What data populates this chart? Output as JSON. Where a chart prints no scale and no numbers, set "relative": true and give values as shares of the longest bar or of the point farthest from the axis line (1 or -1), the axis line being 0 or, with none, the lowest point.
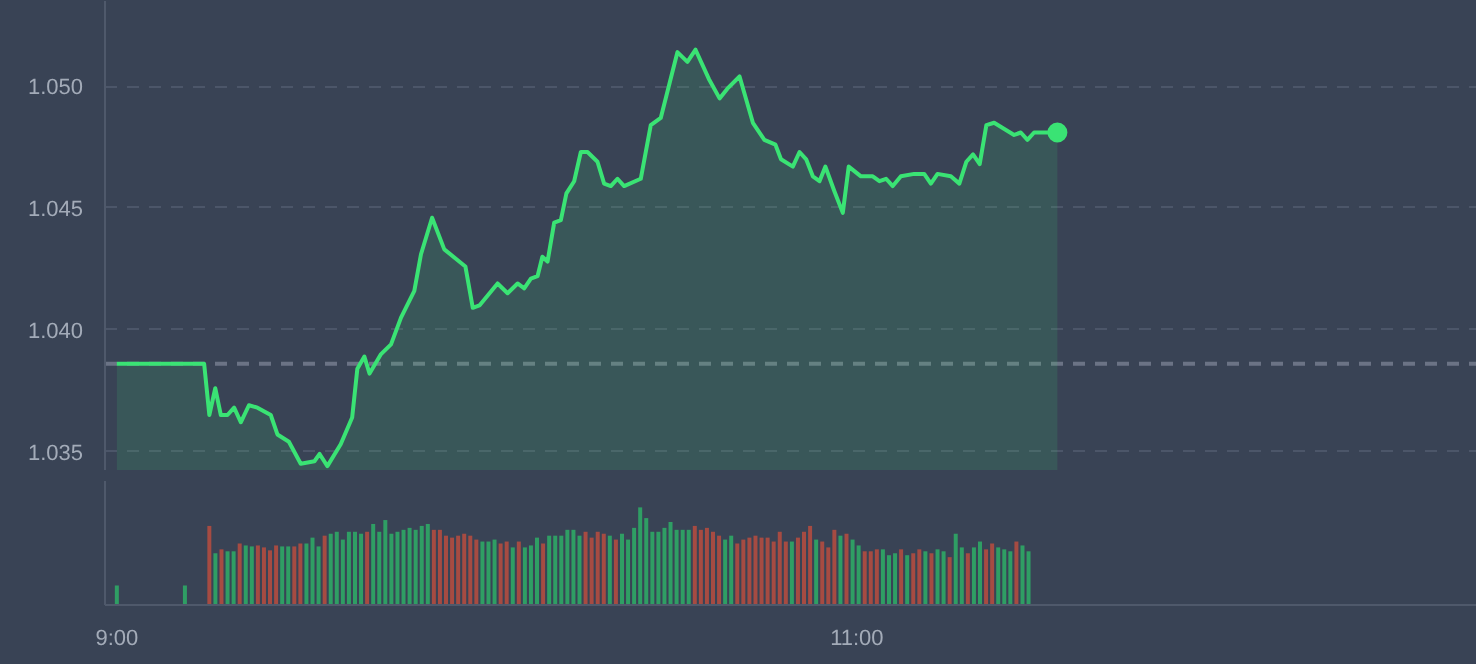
{
  "chart_data": [
    {
      "type": "area",
      "color": "#3ae374",
      "line_style": "solid",
      "grid": "y",
      "tick_labels": "y",
      "xlim": [
        8.968,
        12.676
      ],
      "ylim": [
        1.0342,
        1.0535
      ],
      "yticks": [
        {
          "value": 1.035,
          "label": "1.035"
        },
        {
          "value": 1.04,
          "label": "1.040"
        },
        {
          "value": 1.045,
          "label": "1.045"
        },
        {
          "value": 1.05,
          "label": "1.050"
        }
      ],
      "ref_lines": [
        {
          "axis": "y",
          "value": 1.0386,
          "line_style": "dashed",
          "color": "#6b7385"
        }
      ],
      "x": [
        9.0,
        9.236,
        9.25,
        9.266,
        9.281,
        9.299,
        9.317,
        9.335,
        9.357,
        9.38,
        9.416,
        9.434,
        9.465,
        9.497,
        9.534,
        9.548,
        9.569,
        9.605,
        9.636,
        9.65,
        9.669,
        9.683,
        9.714,
        9.741,
        9.768,
        9.804,
        9.822,
        9.852,
        9.885,
        9.942,
        9.962,
        9.98,
        10.029,
        10.056,
        10.083,
        10.101,
        10.119,
        10.137,
        10.15,
        10.164,
        10.182,
        10.2,
        10.215,
        10.236,
        10.254,
        10.272,
        10.299,
        10.317,
        10.335,
        10.353,
        10.371,
        10.416,
        10.443,
        10.47,
        10.515,
        10.542,
        10.564,
        10.6,
        10.629,
        10.65,
        10.683,
        10.719,
        10.75,
        10.78,
        10.795,
        10.827,
        10.845,
        10.863,
        10.881,
        10.899,
        10.915,
        10.939,
        10.962,
        10.978,
        11.011,
        11.043,
        11.061,
        11.079,
        11.097,
        11.119,
        11.155,
        11.182,
        11.2,
        11.218,
        11.254,
        11.277,
        11.296,
        11.314,
        11.332,
        11.35,
        11.371,
        11.425,
        11.443,
        11.461,
        11.479,
        11.542
      ],
      "values": [
        1.0386,
        1.0386,
        1.0365,
        1.0376,
        1.0365,
        1.0365,
        1.0368,
        1.0362,
        1.0369,
        1.0368,
        1.0365,
        1.0357,
        1.0354,
        1.0345,
        1.0346,
        1.0349,
        1.0344,
        1.0353,
        1.0364,
        1.0384,
        1.0389,
        1.0382,
        1.039,
        1.0394,
        1.0405,
        1.0416,
        1.0431,
        1.0446,
        1.0433,
        1.0426,
        1.0409,
        1.041,
        1.0419,
        1.0415,
        1.0419,
        1.0417,
        1.0421,
        1.0422,
        1.043,
        1.0428,
        1.0444,
        1.0445,
        1.0456,
        1.0461,
        1.0473,
        1.0473,
        1.0469,
        1.046,
        1.0459,
        1.0462,
        1.0459,
        1.0462,
        1.0484,
        1.0487,
        1.0514,
        1.051,
        1.0515,
        1.0503,
        1.0495,
        1.0499,
        1.0504,
        1.0485,
        1.0478,
        1.0476,
        1.047,
        1.0467,
        1.0473,
        1.047,
        1.0463,
        1.0461,
        1.0467,
        1.0457,
        1.0448,
        1.0467,
        1.0463,
        1.0463,
        1.0461,
        1.0462,
        1.0459,
        1.0463,
        1.0464,
        1.0464,
        1.046,
        1.0464,
        1.0463,
        1.046,
        1.0469,
        1.0472,
        1.0468,
        1.0484,
        1.0485,
        1.048,
        1.0481,
        1.0478,
        1.0481,
        1.0481
      ]
    },
    {
      "type": "bar",
      "relative": true,
      "tick_labels": "x",
      "xlim": [
        8.968,
        12.676
      ],
      "xticks": [
        {
          "value": 9,
          "label": "9:00"
        },
        {
          "value": 11,
          "label": "11:00"
        }
      ],
      "x": [
        9.0,
        9.184,
        9.25,
        9.2664,
        9.2828,
        9.2992,
        9.3156,
        9.332,
        9.3484,
        9.3648,
        9.3812,
        9.3976,
        9.414,
        9.4304,
        9.4468,
        9.4632,
        9.4796,
        9.496,
        9.5124,
        9.5288,
        9.5452,
        9.5616,
        9.578,
        9.5944,
        9.6108,
        9.6272,
        9.6436,
        9.66,
        9.6764,
        9.6928,
        9.7092,
        9.7256,
        9.742,
        9.7584,
        9.7748,
        9.7912,
        9.8076,
        9.824,
        9.8404,
        9.8568,
        9.8732,
        9.8896,
        9.906,
        9.9224,
        9.9388,
        9.9552,
        9.9716,
        9.988,
        10.0044,
        10.0208,
        10.0372,
        10.0536,
        10.07,
        10.0864,
        10.1028,
        10.1192,
        10.1356,
        10.152,
        10.1684,
        10.1848,
        10.2012,
        10.2176,
        10.234,
        10.2504,
        10.2668,
        10.2832,
        10.2996,
        10.316,
        10.3324,
        10.3488,
        10.3652,
        10.3816,
        10.398,
        10.4144,
        10.4308,
        10.4472,
        10.4636,
        10.48,
        10.4964,
        10.5128,
        10.5292,
        10.5456,
        10.562,
        10.5784,
        10.5948,
        10.6112,
        10.6276,
        10.644,
        10.6604,
        10.6768,
        10.6932,
        10.7096,
        10.726,
        10.7424,
        10.7588,
        10.7752,
        10.7916,
        10.808,
        10.8244,
        10.8408,
        10.8572,
        10.8736,
        10.89,
        10.9064,
        10.9228,
        10.9392,
        10.9556,
        10.972,
        10.9884,
        11.0048,
        11.0212,
        11.0376,
        11.054,
        11.0704,
        11.0868,
        11.1032,
        11.1196,
        11.136,
        11.1524,
        11.1688,
        11.1852,
        11.2016,
        11.218,
        11.2344,
        11.2508,
        11.2672,
        11.2836,
        11.3,
        11.3164,
        11.3328,
        11.3492,
        11.3656,
        11.382,
        11.3984,
        11.4148,
        11.4312,
        11.4476,
        11.464
      ],
      "values": [
        0.2,
        0.2,
        0.81,
        0.53,
        0.57,
        0.55,
        0.55,
        0.63,
        0.61,
        0.6,
        0.61,
        0.59,
        0.56,
        0.61,
        0.6,
        0.6,
        0.6,
        0.63,
        0.63,
        0.69,
        0.6,
        0.71,
        0.73,
        0.75,
        0.67,
        0.75,
        0.75,
        0.73,
        0.75,
        0.83,
        0.75,
        0.87,
        0.73,
        0.75,
        0.77,
        0.79,
        0.77,
        0.81,
        0.83,
        0.77,
        0.77,
        0.71,
        0.69,
        0.71,
        0.73,
        0.71,
        0.67,
        0.65,
        0.65,
        0.67,
        0.63,
        0.65,
        0.59,
        0.65,
        0.59,
        0.61,
        0.69,
        0.63,
        0.71,
        0.71,
        0.71,
        0.77,
        0.77,
        0.71,
        0.75,
        0.69,
        0.75,
        0.73,
        0.71,
        0.67,
        0.73,
        0.67,
        0.79,
        1,
        0.89,
        0.75,
        0.75,
        0.79,
        0.85,
        0.77,
        0.77,
        0.77,
        0.81,
        0.77,
        0.79,
        0.75,
        0.71,
        0.67,
        0.71,
        0.63,
        0.67,
        0.69,
        0.71,
        0.69,
        0.69,
        0.65,
        0.75,
        0.65,
        0.65,
        0.69,
        0.75,
        0.81,
        0.67,
        0.65,
        0.59,
        0.77,
        0.71,
        0.73,
        0.67,
        0.61,
        0.55,
        0.55,
        0.57,
        0.57,
        0.51,
        0.53,
        0.57,
        0.51,
        0.53,
        0.57,
        0.55,
        0.53,
        0.57,
        0.55,
        0.49,
        0.73,
        0.59,
        0.53,
        0.59,
        0.65,
        0.57,
        0.63,
        0.59,
        0.57,
        0.55,
        0.65,
        0.61,
        0.55
      ],
      "colors": [
        "#2f9e64",
        "#2f9e64",
        "#a64b42",
        "#2f9e64",
        "#a64b42",
        "#2f9e64",
        "#2f9e64",
        "#a64b42",
        "#2f9e64",
        "#2f9e64",
        "#a64b42",
        "#a64b42",
        "#a64b42",
        "#a64b42",
        "#2f9e64",
        "#2f9e64",
        "#a64b42",
        "#a64b42",
        "#2f9e64",
        "#2f9e64",
        "#2f9e64",
        "#a64b42",
        "#2f9e64",
        "#2f9e64",
        "#2f9e64",
        "#2f9e64",
        "#2f9e64",
        "#2f9e64",
        "#a64b42",
        "#2f9e64",
        "#2f9e64",
        "#2f9e64",
        "#2f9e64",
        "#2f9e64",
        "#2f9e64",
        "#2f9e64",
        "#2f9e64",
        "#2f9e64",
        "#2f9e64",
        "#a64b42",
        "#a64b42",
        "#a64b42",
        "#a64b42",
        "#a64b42",
        "#a64b42",
        "#a64b42",
        "#a64b42",
        "#2f9e64",
        "#2f9e64",
        "#2f9e64",
        "#a64b42",
        "#a64b42",
        "#2f9e64",
        "#a64b42",
        "#2f9e64",
        "#2f9e64",
        "#2f9e64",
        "#a64b42",
        "#2f9e64",
        "#2f9e64",
        "#2f9e64",
        "#2f9e64",
        "#2f9e64",
        "#2f9e64",
        "#a64b42",
        "#a64b42",
        "#a64b42",
        "#a64b42",
        "#2f9e64",
        "#a64b42",
        "#2f9e64",
        "#2f9e64",
        "#2f9e64",
        "#2f9e64",
        "#2f9e64",
        "#2f9e64",
        "#2f9e64",
        "#2f9e64",
        "#2f9e64",
        "#2f9e64",
        "#2f9e64",
        "#2f9e64",
        "#a64b42",
        "#a64b42",
        "#a64b42",
        "#a64b42",
        "#a64b42",
        "#2f9e64",
        "#2f9e64",
        "#a64b42",
        "#a64b42",
        "#a64b42",
        "#a64b42",
        "#a64b42",
        "#a64b42",
        "#a64b42",
        "#a64b42",
        "#a64b42",
        "#2f9e64",
        "#a64b42",
        "#a64b42",
        "#a64b42",
        "#2f9e64",
        "#a64b42",
        "#a64b42",
        "#a64b42",
        "#2f9e64",
        "#a64b42",
        "#2f9e64",
        "#2f9e64",
        "#a64b42",
        "#a64b42",
        "#a64b42",
        "#2f9e64",
        "#2f9e64",
        "#2f9e64",
        "#a64b42",
        "#2f9e64",
        "#a64b42",
        "#a64b42",
        "#2f9e64",
        "#a64b42",
        "#2f9e64",
        "#2f9e64",
        "#a64b42",
        "#2f9e64",
        "#2f9e64",
        "#a64b42",
        "#2f9e64",
        "#2f9e64",
        "#a64b42",
        "#a64b42",
        "#2f9e64",
        "#2f9e64",
        "#2f9e64",
        "#a64b42",
        "#2f9e64",
        "#2f9e64"
      ]
    }
  ]
}
